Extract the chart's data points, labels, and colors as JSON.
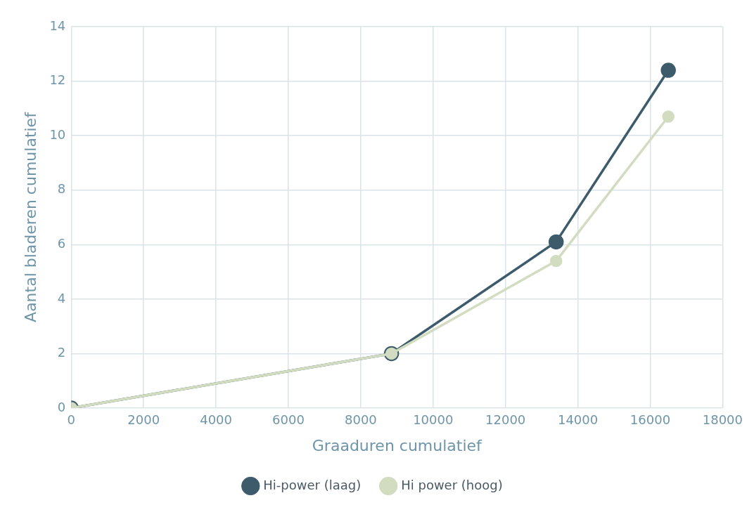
{
  "chart_data": {
    "type": "line",
    "xlabel": "Graaduren cumulatief",
    "ylabel": "Aantal bladeren cumulatief",
    "x": [
      0,
      8850,
      13400,
      16500
    ],
    "series": [
      {
        "name": "Hi-power (laag)",
        "color": "#3e5b6b",
        "values": [
          0,
          2,
          6.1,
          12.4
        ]
      },
      {
        "name": "Hi power (hoog)",
        "color": "#d2dcc0",
        "values": [
          0,
          2,
          5.4,
          10.7
        ]
      }
    ],
    "xlim": [
      0,
      18000
    ],
    "xticks": [
      0,
      2000,
      4000,
      6000,
      8000,
      10000,
      12000,
      14000,
      16000,
      18000
    ],
    "ylim": [
      0,
      14
    ],
    "yticks": [
      0,
      2,
      4,
      6,
      8,
      10,
      12,
      14
    ],
    "grid": true,
    "legend": "bottom",
    "marker": "circle",
    "line_style": "solid"
  }
}
